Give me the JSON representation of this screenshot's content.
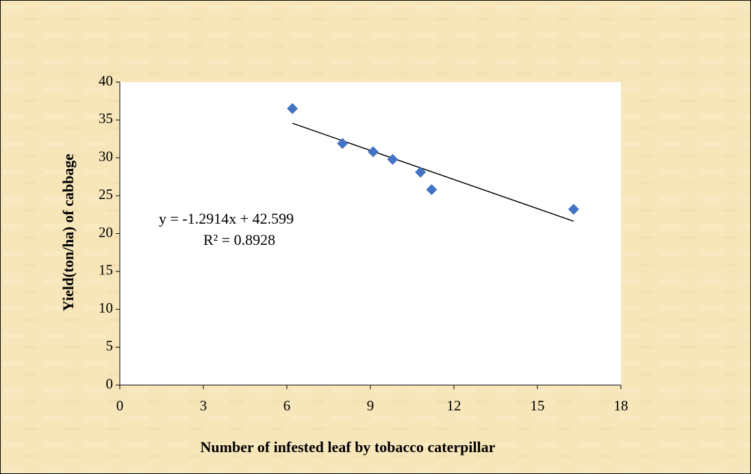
{
  "chart_data": {
    "type": "scatter",
    "x_label": "Number of infested leaf by tobacco caterpillar",
    "y_label": "Yield(ton/ha) of cabbage",
    "x": [
      6.2,
      8.0,
      9.1,
      9.8,
      10.8,
      11.2,
      16.3
    ],
    "values": [
      36.5,
      31.9,
      30.8,
      29.8,
      28.1,
      25.8,
      23.2
    ],
    "color": "#4472c4",
    "trendline": true,
    "annotations": [
      "y = -1.2914x + 42.599",
      "R² = 0.8928"
    ],
    "xlim": [
      0,
      18
    ],
    "xticks": [
      0,
      3,
      6,
      9,
      12,
      15,
      18
    ],
    "ylim": [
      0,
      40
    ],
    "yticks": [
      0,
      5,
      10,
      15,
      20,
      25,
      30,
      35,
      40
    ],
    "grid": false
  }
}
